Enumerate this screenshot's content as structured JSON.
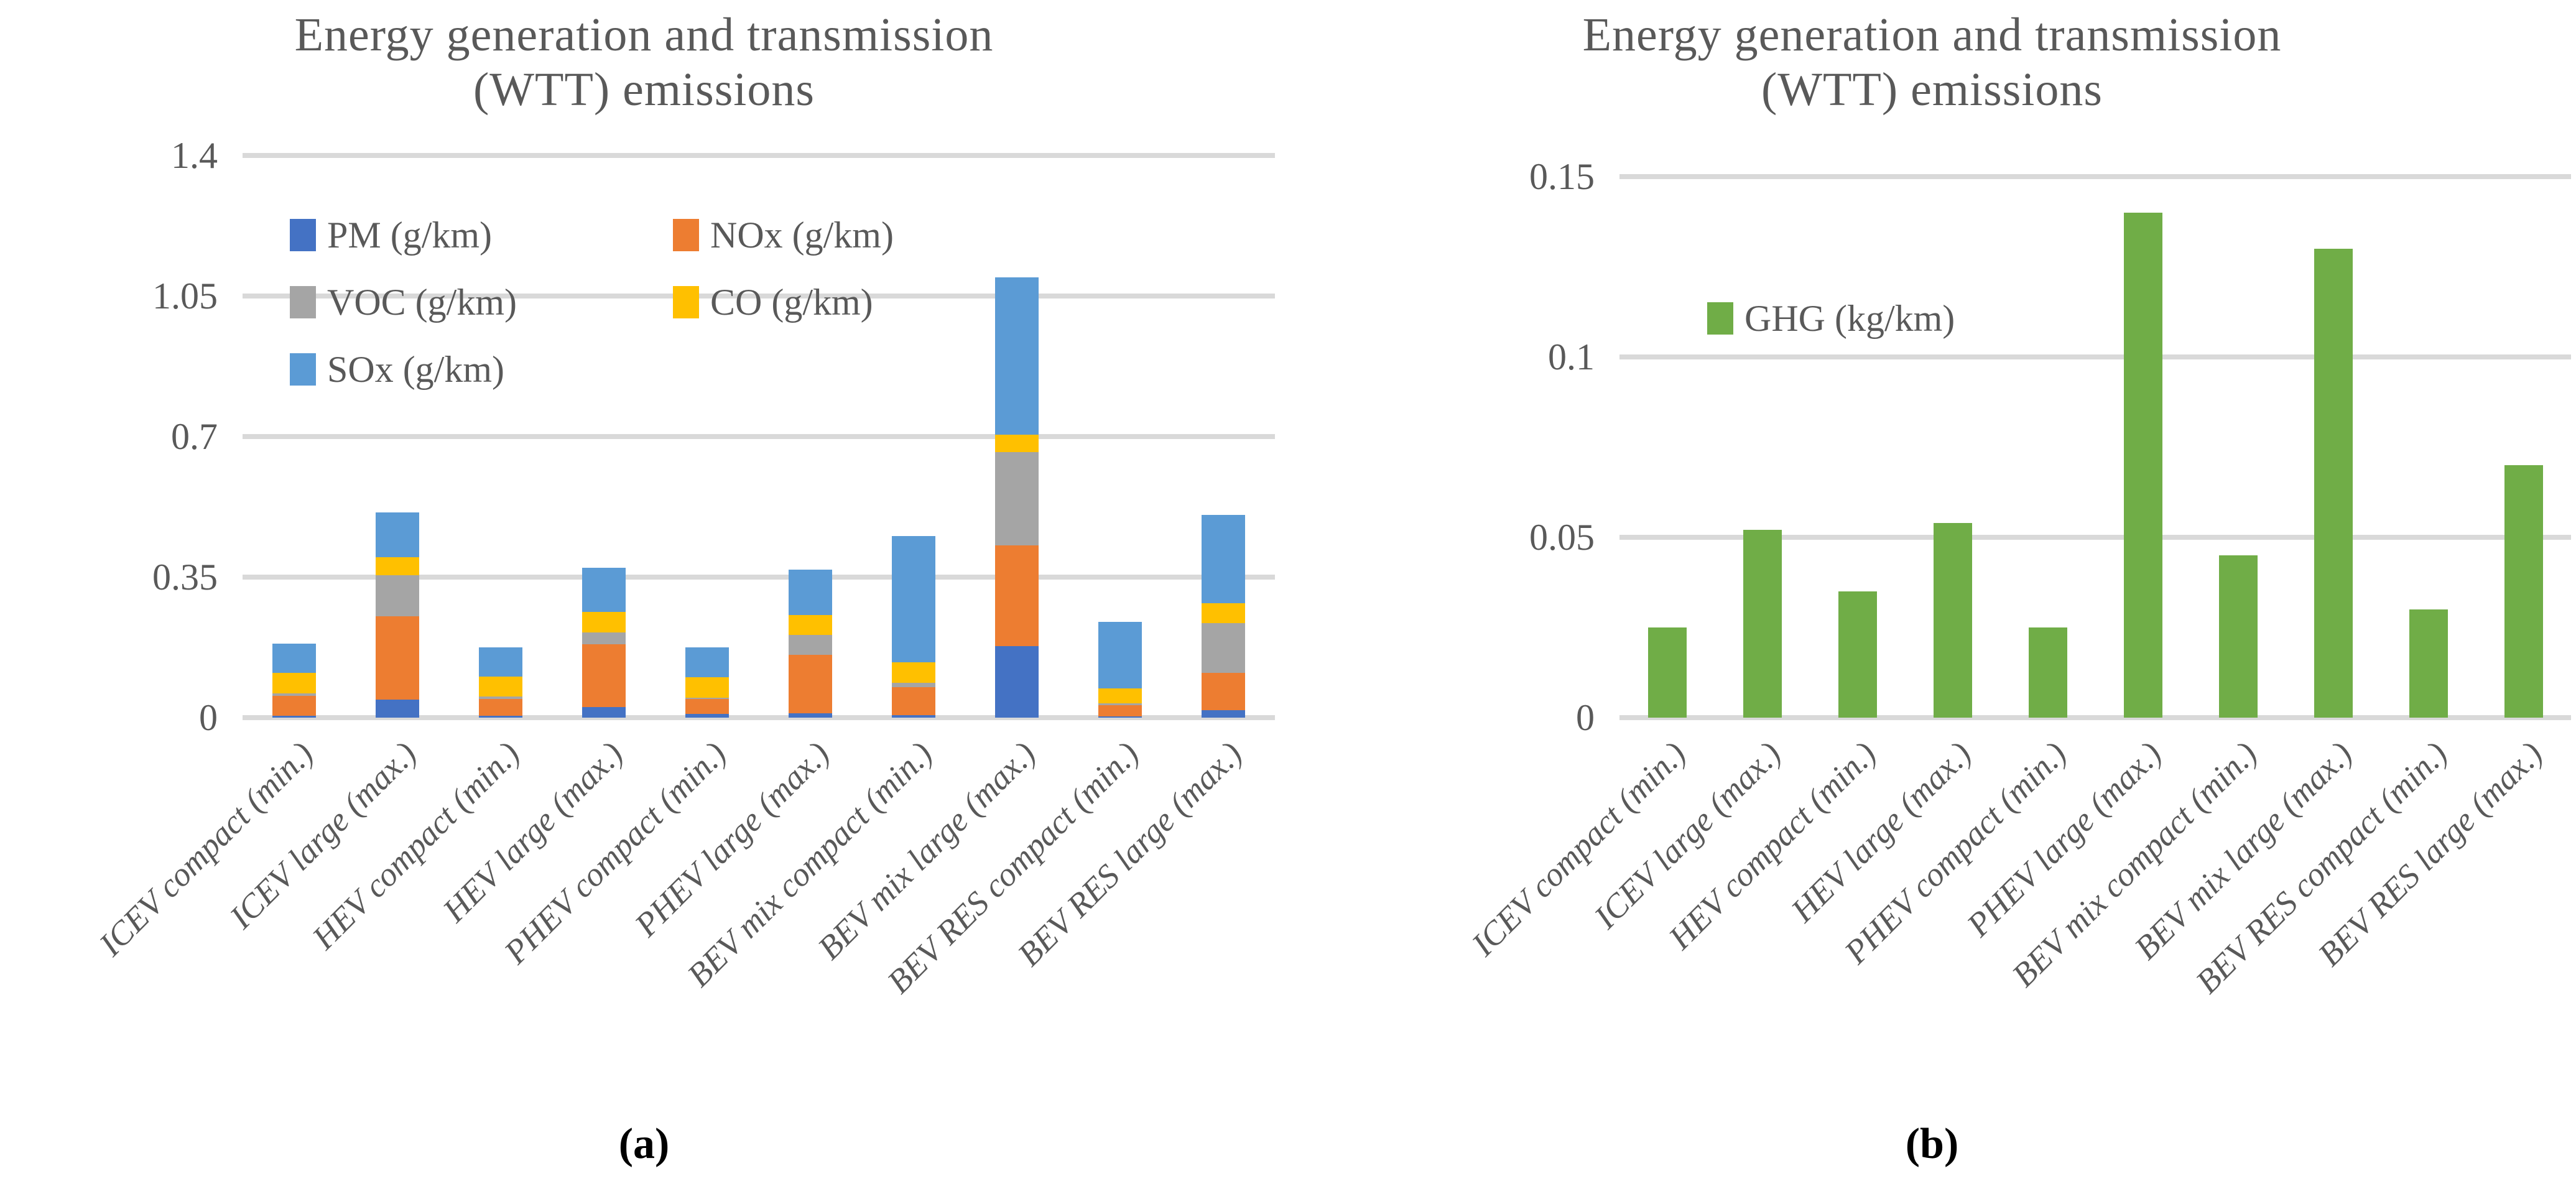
{
  "figure_name": "energy-generation-and-transmission-wtt-emissions",
  "charts": [
    {
      "id": "wtt-pollutant-emissions",
      "title_line1": "Energy generation and transmission",
      "title_line2": "(WTT) emissions",
      "caption": "(a)",
      "chart_data": {
        "type": "bar",
        "stacked": true,
        "grid": true,
        "legend_position": "upper-left-two-columns",
        "ylim": [
          0,
          1.4
        ],
        "yticks": [
          {
            "label": "0",
            "value": 0
          },
          {
            "label": "0.35",
            "value": 0.35
          },
          {
            "label": "0.7",
            "value": 0.7
          },
          {
            "label": "1.05",
            "value": 1.05
          },
          {
            "label": "1.4",
            "value": 1.4
          }
        ],
        "categories": [
          "ICEV compact (min.)",
          "ICEV large (max.)",
          "HEV compact (min.)",
          "HEV large (max.)",
          "PHEV compact (min.)",
          "PHEV large (max.)",
          "BEV mix compact (min.)",
          "BEV mix large (max.)",
          "BEV RES compact (min.)",
          "BEV RES large (max.)"
        ],
        "series": [
          {
            "name": "PM (g/km)",
            "color": "#4472C4",
            "values": [
              0.005,
              0.045,
              0.005,
              0.027,
              0.01,
              0.011,
              0.006,
              0.178,
              0.003,
              0.019
            ]
          },
          {
            "name": "NOx (g/km)",
            "color": "#ED7D31",
            "values": [
              0.049,
              0.208,
              0.042,
              0.156,
              0.036,
              0.145,
              0.07,
              0.251,
              0.028,
              0.092
            ]
          },
          {
            "name": "VOC (g/km)",
            "color": "#A5A5A5",
            "values": [
              0.006,
              0.101,
              0.006,
              0.029,
              0.004,
              0.05,
              0.011,
              0.233,
              0.004,
              0.125
            ]
          },
          {
            "name": "CO (g/km)",
            "color": "#FFC000",
            "values": [
              0.052,
              0.046,
              0.049,
              0.051,
              0.051,
              0.049,
              0.051,
              0.042,
              0.038,
              0.049
            ]
          },
          {
            "name": "SOx (g/km)",
            "color": "#5B9BD5",
            "values": [
              0.073,
              0.111,
              0.073,
              0.111,
              0.074,
              0.114,
              0.314,
              0.393,
              0.166,
              0.22
            ]
          }
        ]
      }
    },
    {
      "id": "wtt-ghg-emissions",
      "title_line1": "Energy generation and transmission",
      "title_line2": "(WTT) emissions",
      "caption": "(b)",
      "chart_data": {
        "type": "bar",
        "stacked": false,
        "grid": true,
        "legend_position": "upper-left",
        "ylim": [
          0,
          0.15
        ],
        "yticks": [
          {
            "label": "0",
            "value": 0
          },
          {
            "label": "0.05",
            "value": 0.05
          },
          {
            "label": "0.1",
            "value": 0.1
          },
          {
            "label": "0.15",
            "value": 0.15
          }
        ],
        "categories": [
          "ICEV compact (min.)",
          "ICEV large (max.)",
          "HEV compact (min.)",
          "HEV large (max.)",
          "PHEV compact (min.)",
          "PHEV large (max.)",
          "BEV mix compact (min.)",
          "BEV mix large (max.)",
          "BEV RES compact (min.)",
          "BEV RES large (max.)"
        ],
        "series": [
          {
            "name": "GHG (kg/km)",
            "color": "#70AD47",
            "values": [
              0.025,
              0.052,
              0.035,
              0.054,
              0.025,
              0.14,
              0.045,
              0.13,
              0.03,
              0.07
            ]
          }
        ]
      }
    }
  ],
  "colors": {
    "gridline": "#D9D9D9",
    "axis_text": "#595959",
    "title_text": "#595959",
    "caption_text": "#000000"
  }
}
